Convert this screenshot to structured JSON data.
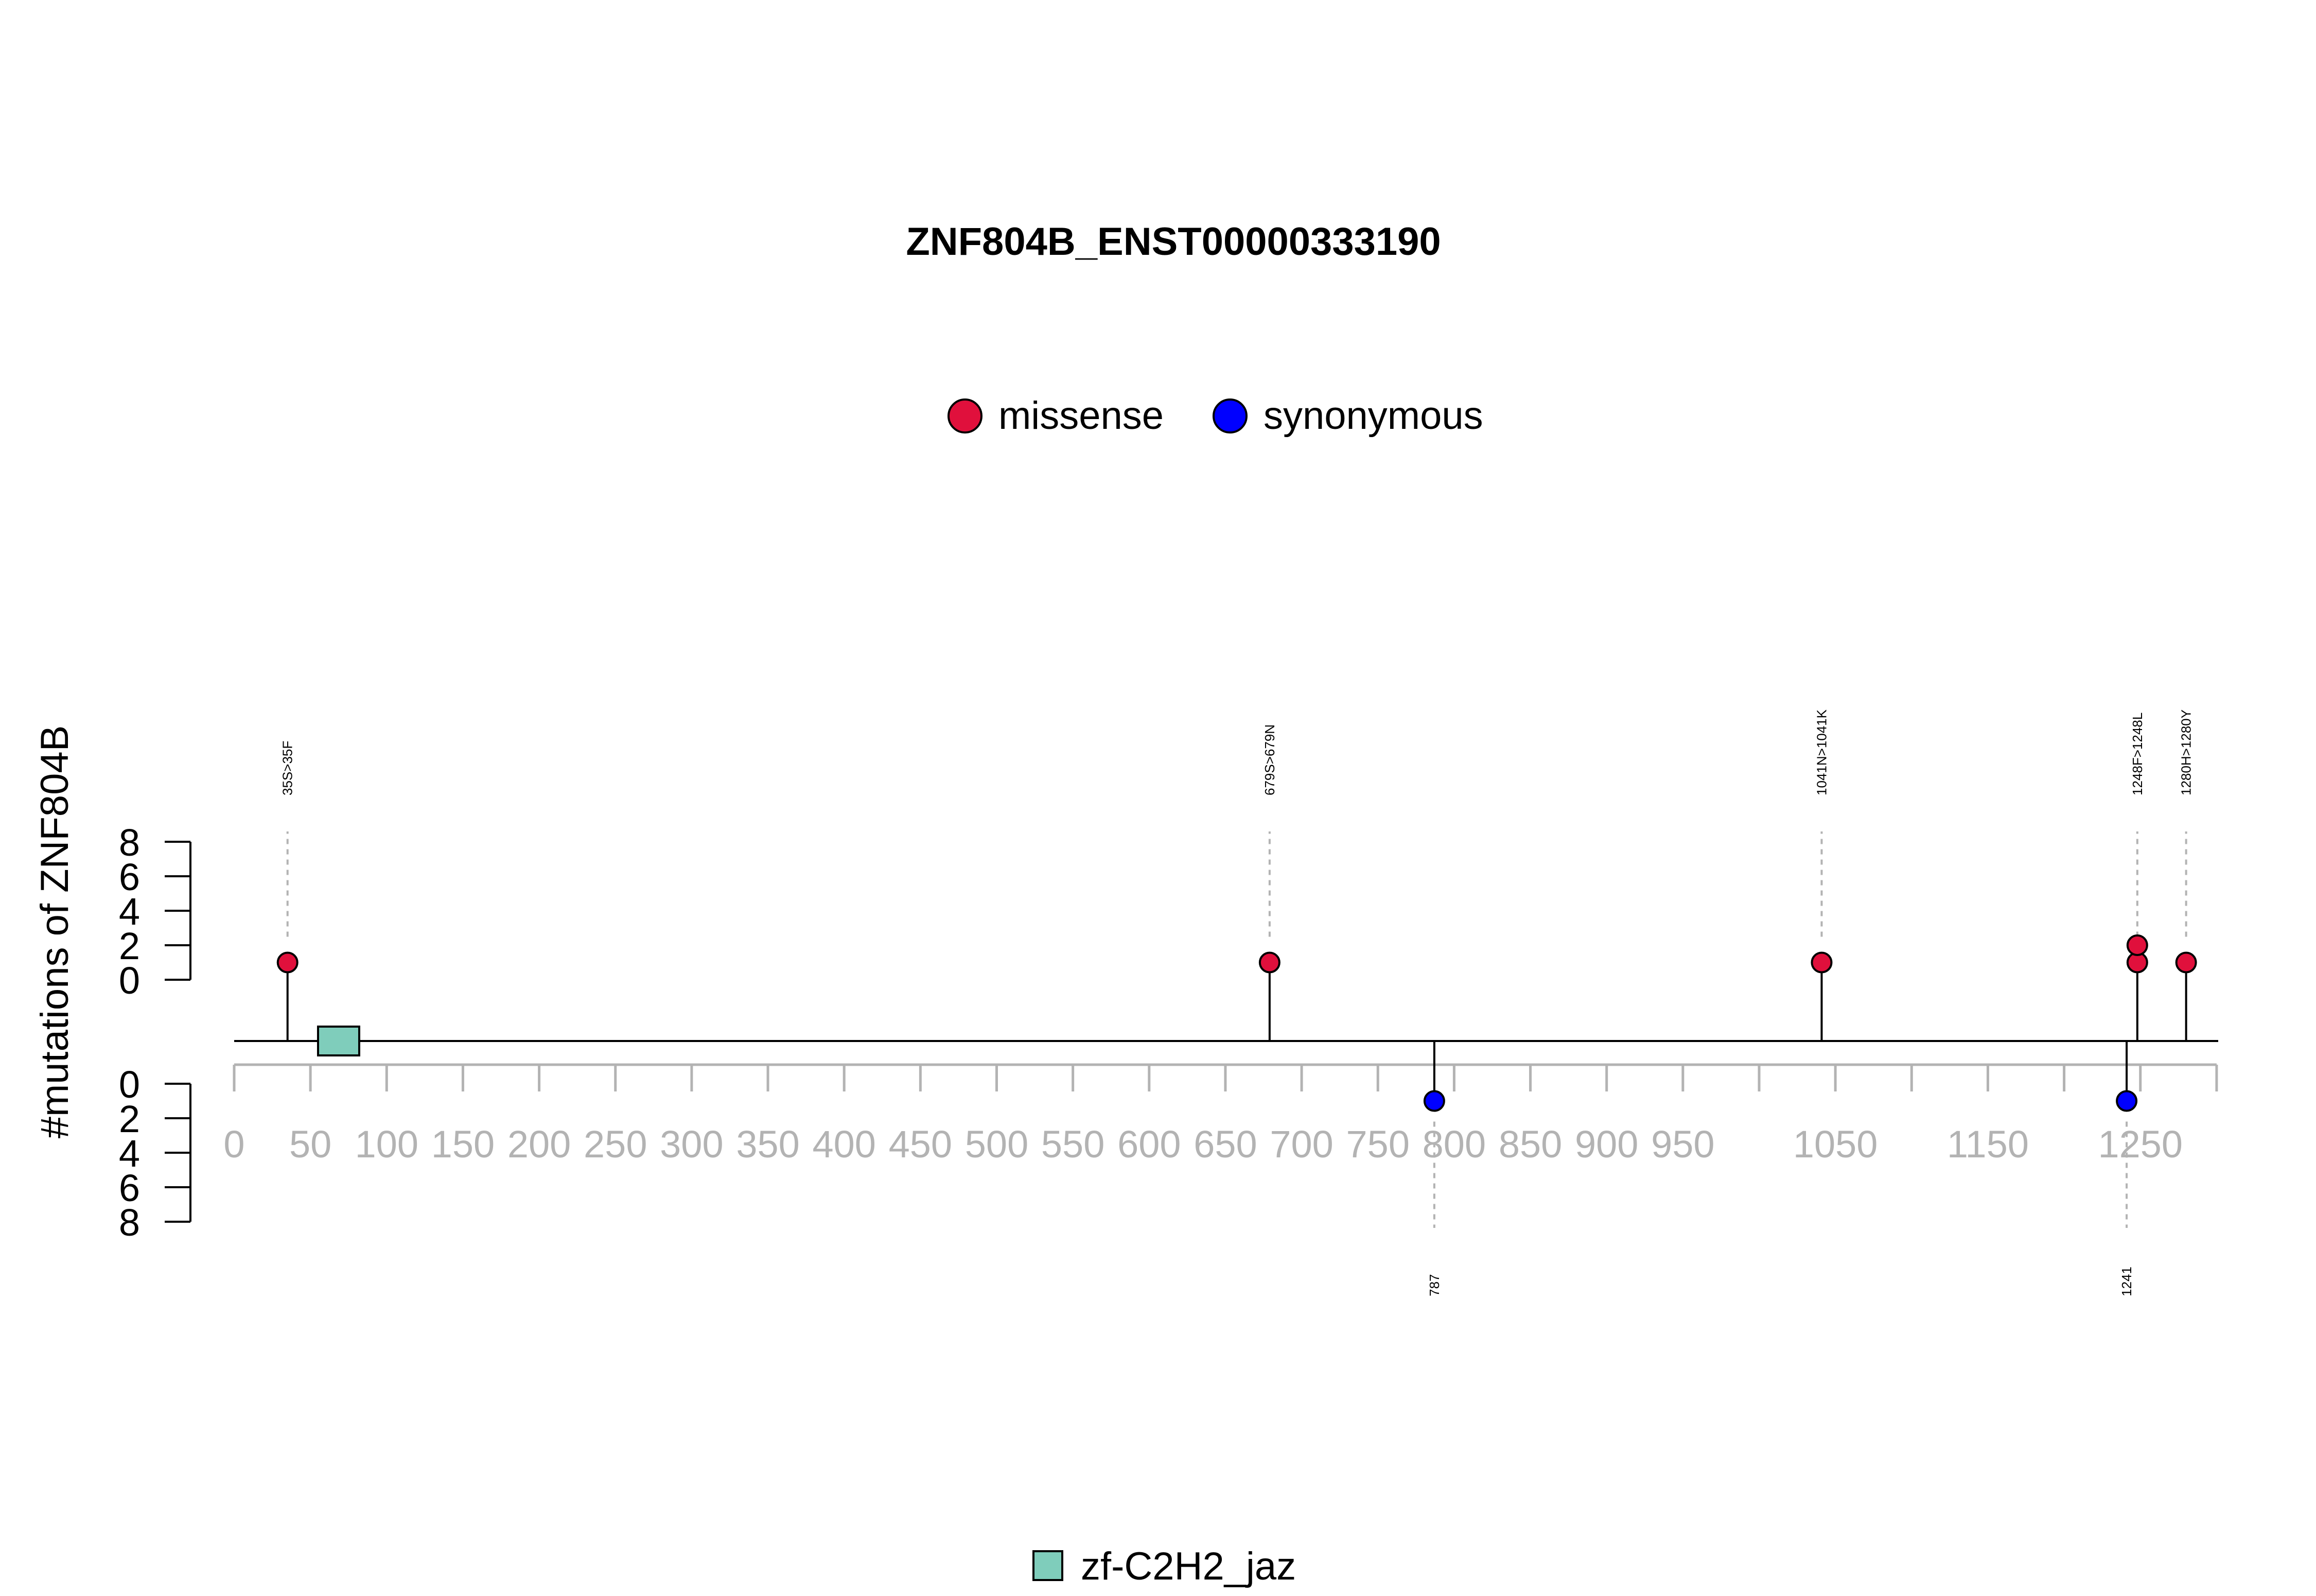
{
  "chart_data": {
    "type": "lollipop",
    "title": "ZNF804B_ENST00000333190",
    "ylabel": "#mutations of ZNF804B",
    "xlim": [
      0,
      1300
    ],
    "ylim": [
      0,
      8
    ],
    "x_ticks": [
      0,
      50,
      100,
      150,
      200,
      250,
      300,
      350,
      400,
      450,
      500,
      550,
      600,
      650,
      700,
      750,
      800,
      850,
      900,
      950,
      1050,
      1150,
      1250
    ],
    "x_minor_ticks": [
      0,
      50,
      100,
      150,
      200,
      250,
      300,
      350,
      400,
      450,
      500,
      550,
      600,
      650,
      700,
      750,
      800,
      850,
      900,
      950,
      1000,
      1050,
      1100,
      1150,
      1200,
      1250,
      1300
    ],
    "y_ticks": [
      0,
      2,
      4,
      6,
      8
    ],
    "legend": [
      {
        "name": "missense",
        "color": "#e0103c"
      },
      {
        "name": "synonymous",
        "color": "#0000ff"
      }
    ],
    "mutations_top": [
      {
        "pos": 35,
        "count": 1,
        "label": "35S>35F",
        "type": "missense"
      },
      {
        "pos": 679,
        "count": 1,
        "label": "679S>679N",
        "type": "missense"
      },
      {
        "pos": 1041,
        "count": 1,
        "label": "1041N>1041K",
        "type": "missense"
      },
      {
        "pos": 1248,
        "count": 2,
        "label": "1248F>1248L",
        "type": "missense"
      },
      {
        "pos": 1280,
        "count": 1,
        "label": "1280H>1280Y",
        "type": "missense"
      }
    ],
    "mutations_bottom": [
      {
        "pos": 787,
        "count": 1,
        "label": "787",
        "type": "synonymous"
      },
      {
        "pos": 1241,
        "count": 1,
        "label": "1241",
        "type": "synonymous"
      }
    ],
    "domains": [
      {
        "name": "zf-C2H2_jaz",
        "start": 55,
        "end": 82,
        "color": "#7fcdbb"
      }
    ]
  }
}
